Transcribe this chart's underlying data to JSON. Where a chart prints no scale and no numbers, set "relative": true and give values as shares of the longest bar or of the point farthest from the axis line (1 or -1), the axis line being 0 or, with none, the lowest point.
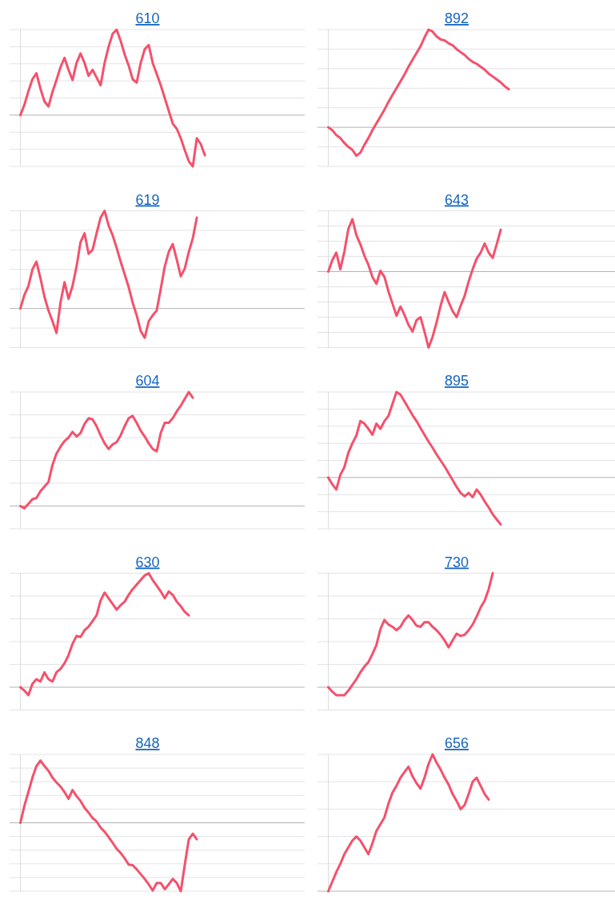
{
  "chart_data": [
    {
      "type": "line",
      "title": "610",
      "relative": true,
      "grid": true,
      "color": "#f4516c",
      "categories": [
        null,
        null,
        null,
        null,
        null,
        null,
        null,
        null,
        null,
        null,
        null,
        null,
        null,
        null,
        null,
        null,
        null,
        null,
        null,
        null,
        null,
        null,
        null,
        null,
        null,
        null,
        null,
        null,
        null,
        null,
        null,
        null,
        null,
        null,
        null,
        null,
        null,
        null,
        null,
        null,
        null,
        null,
        null,
        null,
        null,
        null,
        null,
        null,
        null,
        null,
        null,
        null,
        null,
        null,
        null,
        null,
        null,
        null,
        null,
        null,
        null,
        null,
        null,
        null,
        null,
        null,
        null,
        null,
        null,
        null,
        null,
        null
      ],
      "values": [
        0,
        0.12,
        0.28,
        0.42,
        0.49,
        0.31,
        0.16,
        0.1,
        0.27,
        0.41,
        0.56,
        0.67,
        0.53,
        0.41,
        0.61,
        0.72,
        0.61,
        0.46,
        0.53,
        0.44,
        0.35,
        0.61,
        0.8,
        0.95,
        1,
        0.87,
        0.71,
        0.58,
        0.42,
        0.38,
        0.61,
        0.77,
        0.82,
        0.61,
        0.48,
        0.35,
        0.2,
        0.05,
        -0.1,
        -0.16,
        -0.27,
        -0.41,
        -0.54,
        -0.6,
        -0.27,
        -0.34,
        -0.47,
        null,
        null,
        null,
        null,
        null,
        null,
        null,
        null,
        null,
        null,
        null,
        null,
        null,
        null,
        null,
        null,
        null,
        null,
        null,
        null,
        null,
        null,
        null,
        null,
        null
      ]
    },
    {
      "type": "line",
      "title": "892",
      "relative": true,
      "grid": true,
      "color": "#f4516c",
      "categories": [
        null,
        null,
        null,
        null,
        null,
        null,
        null,
        null,
        null,
        null,
        null,
        null,
        null,
        null,
        null,
        null,
        null,
        null,
        null,
        null,
        null,
        null,
        null,
        null,
        null,
        null,
        null,
        null,
        null,
        null,
        null,
        null,
        null,
        null,
        null,
        null,
        null,
        null,
        null,
        null,
        null,
        null,
        null,
        null,
        null,
        null,
        null,
        null,
        null,
        null,
        null,
        null,
        null,
        null,
        null,
        null,
        null,
        null,
        null,
        null,
        null,
        null,
        null,
        null,
        null,
        null,
        null,
        null,
        null,
        null,
        null,
        null
      ],
      "values": [
        0,
        -0.03,
        -0.08,
        -0.11,
        -0.16,
        -0.2,
        -0.23,
        -0.29,
        -0.26,
        -0.18,
        -0.11,
        -0.03,
        0.04,
        0.11,
        0.18,
        0.26,
        0.33,
        0.4,
        0.47,
        0.54,
        0.62,
        0.69,
        0.76,
        0.83,
        0.92,
        1,
        0.98,
        0.93,
        0.9,
        0.89,
        0.86,
        0.84,
        0.8,
        0.77,
        0.74,
        0.7,
        0.67,
        0.65,
        0.62,
        0.59,
        0.55,
        0.52,
        0.49,
        0.46,
        0.42,
        0.39,
        null,
        null,
        null,
        null,
        null,
        null,
        null,
        null,
        null,
        null,
        null,
        null,
        null,
        null,
        null,
        null,
        null,
        null,
        null,
        null,
        null,
        null,
        null,
        null,
        null,
        null
      ]
    },
    {
      "type": "line",
      "title": "619",
      "relative": true,
      "grid": true,
      "color": "#f4516c",
      "categories": [
        null,
        null,
        null,
        null,
        null,
        null,
        null,
        null,
        null,
        null,
        null,
        null,
        null,
        null,
        null,
        null,
        null,
        null,
        null,
        null,
        null,
        null,
        null,
        null,
        null,
        null,
        null,
        null,
        null,
        null,
        null,
        null,
        null,
        null,
        null,
        null,
        null,
        null,
        null,
        null,
        null,
        null,
        null,
        null,
        null,
        null,
        null,
        null,
        null,
        null,
        null,
        null,
        null,
        null,
        null,
        null,
        null,
        null,
        null,
        null,
        null,
        null,
        null,
        null,
        null,
        null,
        null,
        null,
        null,
        null,
        null,
        null
      ],
      "values": [
        0,
        0.14,
        0.23,
        0.4,
        0.48,
        0.31,
        0.12,
        -0.02,
        -0.13,
        -0.25,
        0.06,
        0.27,
        0.1,
        0.23,
        0.43,
        0.68,
        0.77,
        0.56,
        0.6,
        0.77,
        0.93,
        1,
        0.85,
        0.75,
        0.62,
        0.48,
        0.35,
        0.22,
        0.06,
        -0.07,
        -0.23,
        -0.3,
        -0.13,
        -0.07,
        -0.02,
        0.2,
        0.43,
        0.58,
        0.66,
        0.5,
        0.33,
        0.41,
        0.58,
        0.72,
        0.93,
        null,
        null,
        null,
        null,
        null,
        null,
        null,
        null,
        null,
        null,
        null,
        null,
        null,
        null,
        null,
        null,
        null,
        null,
        null,
        null,
        null,
        null,
        null,
        null,
        null,
        null,
        null
      ]
    },
    {
      "type": "line",
      "title": "643",
      "relative": true,
      "grid": true,
      "color": "#f4516c",
      "categories": [
        null,
        null,
        null,
        null,
        null,
        null,
        null,
        null,
        null,
        null,
        null,
        null,
        null,
        null,
        null,
        null,
        null,
        null,
        null,
        null,
        null,
        null,
        null,
        null,
        null,
        null,
        null,
        null,
        null,
        null,
        null,
        null,
        null,
        null,
        null,
        null,
        null,
        null,
        null,
        null,
        null,
        null,
        null,
        null,
        null,
        null,
        null,
        null,
        null,
        null,
        null,
        null,
        null,
        null,
        null,
        null,
        null,
        null,
        null,
        null,
        null,
        null,
        null,
        null,
        null,
        null,
        null,
        null,
        null,
        null,
        null,
        null
      ],
      "values": [
        0,
        0.15,
        0.25,
        0.03,
        0.26,
        0.56,
        0.69,
        0.48,
        0.36,
        0.21,
        0.09,
        -0.07,
        -0.16,
        0.01,
        -0.07,
        -0.26,
        -0.42,
        -0.58,
        -0.46,
        -0.57,
        -0.7,
        -0.79,
        -0.64,
        -0.6,
        -0.79,
        -1,
        -0.86,
        -0.67,
        -0.45,
        -0.27,
        -0.4,
        -0.52,
        -0.6,
        -0.45,
        -0.32,
        -0.13,
        0.03,
        0.17,
        0.25,
        0.37,
        0.25,
        0.18,
        0.36,
        0.55,
        null,
        null,
        null,
        null,
        null,
        null,
        null,
        null,
        null,
        null,
        null,
        null,
        null,
        null,
        null,
        null,
        null,
        null,
        null,
        null,
        null,
        null,
        null,
        null,
        null,
        null,
        null,
        null
      ]
    },
    {
      "type": "line",
      "title": "604",
      "relative": true,
      "grid": true,
      "color": "#f4516c",
      "categories": [
        null,
        null,
        null,
        null,
        null,
        null,
        null,
        null,
        null,
        null,
        null,
        null,
        null,
        null,
        null,
        null,
        null,
        null,
        null,
        null,
        null,
        null,
        null,
        null,
        null,
        null,
        null,
        null,
        null,
        null,
        null,
        null,
        null,
        null,
        null,
        null,
        null,
        null,
        null,
        null,
        null,
        null,
        null,
        null,
        null,
        null,
        null,
        null,
        null,
        null,
        null,
        null,
        null,
        null,
        null,
        null,
        null,
        null,
        null,
        null,
        null,
        null,
        null,
        null,
        null,
        null,
        null,
        null,
        null,
        null,
        null,
        null
      ],
      "values": [
        0,
        -0.02,
        0.02,
        0.06,
        0.07,
        0.13,
        0.17,
        0.21,
        0.36,
        0.46,
        0.52,
        0.57,
        0.6,
        0.65,
        0.61,
        0.64,
        0.72,
        0.77,
        0.76,
        0.7,
        0.62,
        0.55,
        0.5,
        0.54,
        0.56,
        0.62,
        0.7,
        0.77,
        0.79,
        0.73,
        0.66,
        0.61,
        0.55,
        0.5,
        0.48,
        0.64,
        0.73,
        0.73,
        0.77,
        0.83,
        0.88,
        0.94,
        1,
        0.95,
        null,
        null,
        null,
        null,
        null,
        null,
        null,
        null,
        null,
        null,
        null,
        null,
        null,
        null,
        null,
        null,
        null,
        null,
        null,
        null,
        null,
        null,
        null,
        null,
        null,
        null,
        null,
        null
      ]
    },
    {
      "type": "line",
      "title": "895",
      "relative": true,
      "grid": true,
      "color": "#f4516c",
      "categories": [
        null,
        null,
        null,
        null,
        null,
        null,
        null,
        null,
        null,
        null,
        null,
        null,
        null,
        null,
        null,
        null,
        null,
        null,
        null,
        null,
        null,
        null,
        null,
        null,
        null,
        null,
        null,
        null,
        null,
        null,
        null,
        null,
        null,
        null,
        null,
        null,
        null,
        null,
        null,
        null,
        null,
        null,
        null,
        null,
        null,
        null,
        null,
        null,
        null,
        null,
        null,
        null,
        null,
        null,
        null,
        null,
        null,
        null,
        null,
        null,
        null,
        null,
        null,
        null,
        null,
        null,
        null,
        null,
        null,
        null,
        null,
        null
      ],
      "values": [
        0,
        -0.08,
        -0.14,
        0.03,
        0.12,
        0.29,
        0.4,
        0.49,
        0.66,
        0.63,
        0.57,
        0.5,
        0.63,
        0.57,
        0.66,
        0.72,
        0.86,
        1,
        0.97,
        0.89,
        0.81,
        0.73,
        0.66,
        0.58,
        0.5,
        0.42,
        0.35,
        0.27,
        0.2,
        0.13,
        0.05,
        -0.03,
        -0.11,
        -0.18,
        -0.22,
        -0.18,
        -0.23,
        -0.14,
        -0.2,
        -0.28,
        -0.35,
        -0.43,
        -0.49,
        -0.55,
        null,
        null,
        null,
        null,
        null,
        null,
        null,
        null,
        null,
        null,
        null,
        null,
        null,
        null,
        null,
        null,
        null,
        null,
        null,
        null,
        null,
        null,
        null,
        null,
        null,
        null,
        null,
        null
      ]
    },
    {
      "type": "line",
      "title": "630",
      "relative": true,
      "grid": true,
      "color": "#f4516c",
      "categories": [
        null,
        null,
        null,
        null,
        null,
        null,
        null,
        null,
        null,
        null,
        null,
        null,
        null,
        null,
        null,
        null,
        null,
        null,
        null,
        null,
        null,
        null,
        null,
        null,
        null,
        null,
        null,
        null,
        null,
        null,
        null,
        null,
        null,
        null,
        null,
        null,
        null,
        null,
        null,
        null,
        null,
        null,
        null,
        null,
        null,
        null,
        null,
        null,
        null,
        null,
        null,
        null,
        null,
        null,
        null,
        null,
        null,
        null,
        null,
        null,
        null,
        null,
        null,
        null,
        null,
        null,
        null,
        null,
        null,
        null,
        null,
        null
      ],
      "values": [
        0,
        -0.03,
        -0.07,
        0.03,
        0.07,
        0.05,
        0.13,
        0.07,
        0.05,
        0.13,
        0.16,
        0.21,
        0.28,
        0.38,
        0.45,
        0.44,
        0.5,
        0.53,
        0.58,
        0.63,
        0.76,
        0.83,
        0.78,
        0.73,
        0.68,
        0.72,
        0.75,
        0.81,
        0.86,
        0.9,
        0.94,
        0.98,
        1,
        0.94,
        0.89,
        0.84,
        0.78,
        0.84,
        0.81,
        0.75,
        0.71,
        0.66,
        0.63,
        null,
        null,
        null,
        null,
        null,
        null,
        null,
        null,
        null,
        null,
        null,
        null,
        null,
        null,
        null,
        null,
        null,
        null,
        null,
        null,
        null,
        null,
        null,
        null,
        null,
        null,
        null,
        null,
        null
      ]
    },
    {
      "type": "line",
      "title": "730",
      "relative": true,
      "grid": true,
      "color": "#f4516c",
      "categories": [
        null,
        null,
        null,
        null,
        null,
        null,
        null,
        null,
        null,
        null,
        null,
        null,
        null,
        null,
        null,
        null,
        null,
        null,
        null,
        null,
        null,
        null,
        null,
        null,
        null,
        null,
        null,
        null,
        null,
        null,
        null,
        null,
        null,
        null,
        null,
        null,
        null,
        null,
        null,
        null,
        null,
        null,
        null,
        null,
        null,
        null,
        null,
        null,
        null,
        null,
        null,
        null,
        null,
        null,
        null,
        null,
        null,
        null,
        null,
        null,
        null,
        null,
        null,
        null,
        null,
        null,
        null,
        null,
        null,
        null,
        null,
        null
      ],
      "values": [
        0,
        -0.04,
        -0.07,
        -0.07,
        -0.07,
        -0.03,
        0.02,
        0.07,
        0.13,
        0.18,
        0.22,
        0.29,
        0.37,
        0.51,
        0.59,
        0.55,
        0.53,
        0.5,
        0.53,
        0.59,
        0.63,
        0.59,
        0.54,
        0.53,
        0.57,
        0.57,
        0.53,
        0.5,
        0.46,
        0.41,
        0.35,
        0.41,
        0.47,
        0.45,
        0.46,
        0.5,
        0.55,
        0.62,
        0.7,
        0.76,
        0.86,
        1,
        null,
        null,
        null,
        null,
        null,
        null,
        null,
        null,
        null,
        null,
        null,
        null,
        null,
        null,
        null,
        null,
        null,
        null,
        null,
        null,
        null,
        null,
        null,
        null,
        null,
        null,
        null,
        null,
        null,
        null
      ]
    },
    {
      "type": "line",
      "title": "848",
      "relative": true,
      "grid": true,
      "color": "#f4516c",
      "categories": [
        null,
        null,
        null,
        null,
        null,
        null,
        null,
        null,
        null,
        null,
        null,
        null,
        null,
        null,
        null,
        null,
        null,
        null,
        null,
        null,
        null,
        null,
        null,
        null,
        null,
        null,
        null,
        null,
        null,
        null,
        null,
        null,
        null,
        null,
        null,
        null,
        null,
        null,
        null,
        null,
        null,
        null,
        null,
        null,
        null,
        null,
        null,
        null,
        null,
        null,
        null,
        null,
        null,
        null,
        null,
        null,
        null,
        null,
        null,
        null,
        null,
        null,
        null,
        null,
        null,
        null,
        null,
        null,
        null,
        null,
        null,
        null
      ],
      "values": [
        0,
        0.25,
        0.45,
        0.66,
        0.83,
        0.91,
        0.83,
        0.76,
        0.66,
        0.59,
        0.53,
        0.45,
        0.35,
        0.48,
        0.39,
        0.32,
        0.22,
        0.15,
        0.07,
        0.02,
        -0.07,
        -0.13,
        -0.21,
        -0.29,
        -0.38,
        -0.44,
        -0.52,
        -0.61,
        -0.62,
        -0.68,
        -0.75,
        -0.82,
        -0.9,
        -0.99,
        -0.88,
        -0.88,
        -0.97,
        -0.9,
        -0.82,
        -0.88,
        -1,
        -0.61,
        -0.24,
        -0.16,
        -0.24,
        null,
        null,
        null,
        null,
        null,
        null,
        null,
        null,
        null,
        null,
        null,
        null,
        null,
        null,
        null,
        null,
        null,
        null,
        null,
        null,
        null,
        null,
        null,
        null,
        null,
        null,
        null
      ]
    },
    {
      "type": "line",
      "title": "656",
      "relative": true,
      "grid": true,
      "color": "#f4516c",
      "categories": [
        null,
        null,
        null,
        null,
        null,
        null,
        null,
        null,
        null,
        null,
        null,
        null,
        null,
        null,
        null,
        null,
        null,
        null,
        null,
        null,
        null,
        null,
        null,
        null,
        null,
        null,
        null,
        null,
        null,
        null,
        null,
        null,
        null,
        null,
        null,
        null,
        null,
        null,
        null,
        null,
        null,
        null,
        null,
        null,
        null,
        null,
        null,
        null,
        null,
        null,
        null,
        null,
        null,
        null,
        null,
        null,
        null,
        null,
        null,
        null,
        null,
        null,
        null,
        null,
        null,
        null,
        null,
        null,
        null,
        null,
        null,
        null
      ],
      "values": [
        0,
        0.07,
        0.14,
        0.2,
        0.27,
        0.32,
        0.37,
        0.4,
        0.37,
        0.32,
        0.27,
        0.35,
        0.44,
        0.49,
        0.54,
        0.64,
        0.72,
        0.77,
        0.83,
        0.87,
        0.91,
        0.84,
        0.79,
        0.75,
        0.83,
        0.93,
        1,
        0.94,
        0.89,
        0.83,
        0.78,
        0.71,
        0.66,
        0.6,
        0.63,
        0.71,
        0.8,
        0.83,
        0.77,
        0.71,
        0.67,
        null,
        null,
        null,
        null,
        null,
        null,
        null,
        null,
        null,
        null,
        null,
        null,
        null,
        null,
        null,
        null,
        null,
        null,
        null,
        null,
        null,
        null,
        null,
        null,
        null,
        null,
        null,
        null,
        null,
        null,
        null
      ]
    }
  ]
}
